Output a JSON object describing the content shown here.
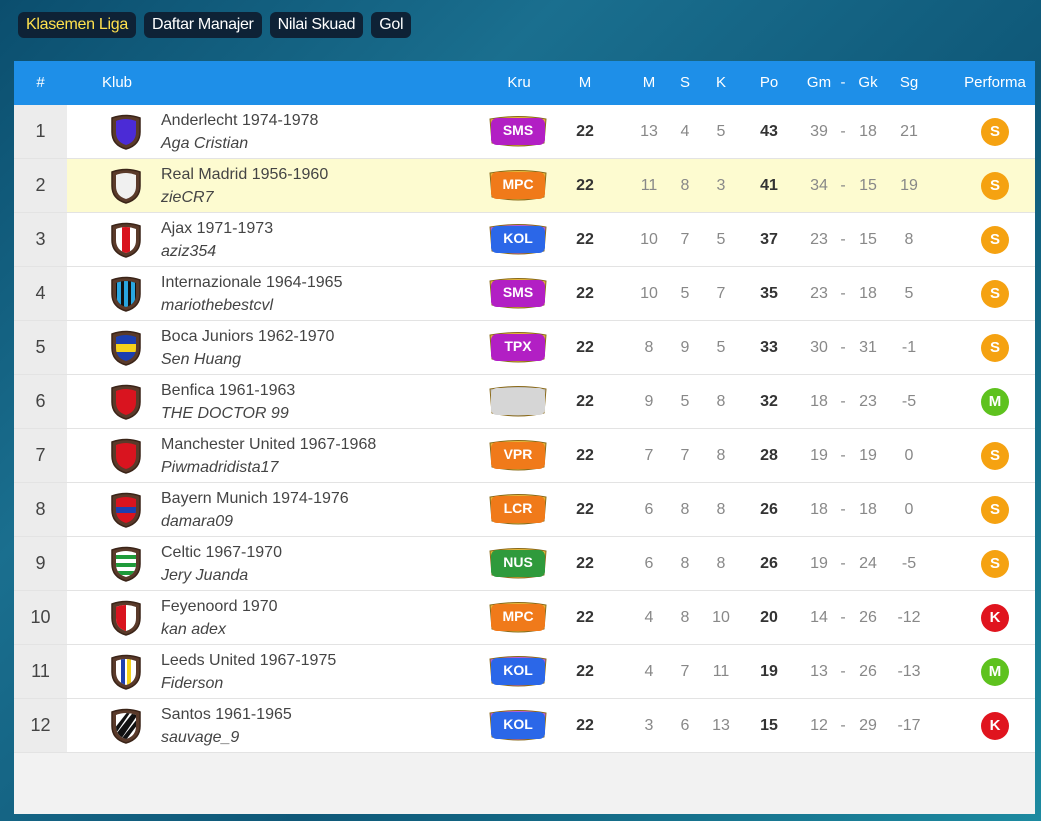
{
  "tabs": [
    "Klasemen Liga",
    "Daftar Manajer",
    "Nilai Skuad",
    "Gol"
  ],
  "header": {
    "rank": "#",
    "club": "Klub",
    "crew": "Kru",
    "played": "M",
    "won": "M",
    "draw": "S",
    "lost": "K",
    "points": "Po",
    "gf": "Gm",
    "dash": "-",
    "ga": "Gk",
    "gd": "Sg",
    "performance": "Performa"
  },
  "rows": [
    {
      "rank": "1",
      "club": "Anderlecht 1974-1978",
      "manager": "Aga Cristian",
      "crew": "SMS",
      "crew_color": "#b21fc4",
      "crew_border": "#e7b83a",
      "played": "22",
      "won": "13",
      "draw": "4",
      "lost": "5",
      "points": "43",
      "gf": "39",
      "ga": "18",
      "gd": "21",
      "perf": "S",
      "perf_color": "#f5a211",
      "crest": "purple"
    },
    {
      "rank": "2",
      "club": "Real Madrid 1956-1960",
      "manager": "zieCR7",
      "crew": "MPC",
      "crew_color": "#f07a1a",
      "crew_border": "#e7b83a",
      "played": "22",
      "won": "11",
      "draw": "8",
      "lost": "3",
      "points": "41",
      "gf": "34",
      "ga": "15",
      "gd": "19",
      "perf": "S",
      "perf_color": "#f5a211",
      "crest": "white"
    },
    {
      "rank": "3",
      "club": "Ajax 1971-1973",
      "manager": "aziz354",
      "crew": "KOL",
      "crew_color": "#2b67e8",
      "crew_border": "#b55ce0",
      "played": "22",
      "won": "10",
      "draw": "7",
      "lost": "5",
      "points": "37",
      "gf": "23",
      "ga": "15",
      "gd": "8",
      "perf": "S",
      "perf_color": "#f5a211",
      "crest": "ajax"
    },
    {
      "rank": "4",
      "club": "Internazionale 1964-1965",
      "manager": "mariothebestcvl",
      "crew": "SMS",
      "crew_color": "#b21fc4",
      "crew_border": "#e7b83a",
      "played": "22",
      "won": "10",
      "draw": "5",
      "lost": "7",
      "points": "35",
      "gf": "23",
      "ga": "18",
      "gd": "5",
      "perf": "S",
      "perf_color": "#f5a211",
      "crest": "inter"
    },
    {
      "rank": "5",
      "club": "Boca Juniors 1962-1970",
      "manager": "Sen Huang",
      "crew": "TPX",
      "crew_color": "#b21fc4",
      "crew_border": "#e7b83a",
      "played": "22",
      "won": "8",
      "draw": "9",
      "lost": "5",
      "points": "33",
      "gf": "30",
      "ga": "31",
      "gd": "-1",
      "perf": "S",
      "perf_color": "#f5a211",
      "crest": "boca"
    },
    {
      "rank": "6",
      "club": "Benfica 1961-1963",
      "manager": "THE DOCTOR 99",
      "crew": "",
      "crew_color": "#d6d6d6",
      "crew_border": "#c4c4c4",
      "played": "22",
      "won": "9",
      "draw": "5",
      "lost": "8",
      "points": "32",
      "gf": "18",
      "ga": "23",
      "gd": "-5",
      "perf": "M",
      "perf_color": "#5ec21e",
      "crest": "red"
    },
    {
      "rank": "7",
      "club": "Manchester United 1967-1968",
      "manager": "Piwmadridista17",
      "crew": "VPR",
      "crew_color": "#f07a1a",
      "crew_border": "#e7b83a",
      "played": "22",
      "won": "7",
      "draw": "7",
      "lost": "8",
      "points": "28",
      "gf": "19",
      "ga": "19",
      "gd": "0",
      "perf": "S",
      "perf_color": "#f5a211",
      "crest": "red"
    },
    {
      "rank": "8",
      "club": "Bayern Munich 1974-1976",
      "manager": "damara09",
      "crew": "LCR",
      "crew_color": "#f07a1a",
      "crew_border": "#e7b83a",
      "played": "22",
      "won": "6",
      "draw": "8",
      "lost": "8",
      "points": "26",
      "gf": "18",
      "ga": "18",
      "gd": "0",
      "perf": "S",
      "perf_color": "#f5a211",
      "crest": "bayern"
    },
    {
      "rank": "9",
      "club": "Celtic 1967-1970",
      "manager": "Jery Juanda",
      "crew": "NUS",
      "crew_color": "#2f9a3c",
      "crew_border": "#e7b83a",
      "played": "22",
      "won": "6",
      "draw": "8",
      "lost": "8",
      "points": "26",
      "gf": "19",
      "ga": "24",
      "gd": "-5",
      "perf": "S",
      "perf_color": "#f5a211",
      "crest": "celtic"
    },
    {
      "rank": "10",
      "club": "Feyenoord 1970",
      "manager": "kan adex",
      "crew": "MPC",
      "crew_color": "#f07a1a",
      "crew_border": "#e7b83a",
      "played": "22",
      "won": "4",
      "draw": "8",
      "lost": "10",
      "points": "20",
      "gf": "14",
      "ga": "26",
      "gd": "-12",
      "perf": "K",
      "perf_color": "#e0141e",
      "crest": "feyenoord"
    },
    {
      "rank": "11",
      "club": "Leeds United 1967-1975",
      "manager": "Fiderson",
      "crew": "KOL",
      "crew_color": "#2b67e8",
      "crew_border": "#b55ce0",
      "played": "22",
      "won": "4",
      "draw": "7",
      "lost": "11",
      "points": "19",
      "gf": "13",
      "ga": "26",
      "gd": "-13",
      "perf": "M",
      "perf_color": "#5ec21e",
      "crest": "leeds"
    },
    {
      "rank": "12",
      "club": "Santos 1961-1965",
      "manager": "sauvage_9",
      "crew": "KOL",
      "crew_color": "#2b67e8",
      "crew_border": "#b55ce0",
      "played": "22",
      "won": "3",
      "draw": "6",
      "lost": "13",
      "points": "15",
      "gf": "12",
      "ga": "29",
      "gd": "-17",
      "perf": "K",
      "perf_color": "#e0141e",
      "crest": "santos"
    }
  ]
}
